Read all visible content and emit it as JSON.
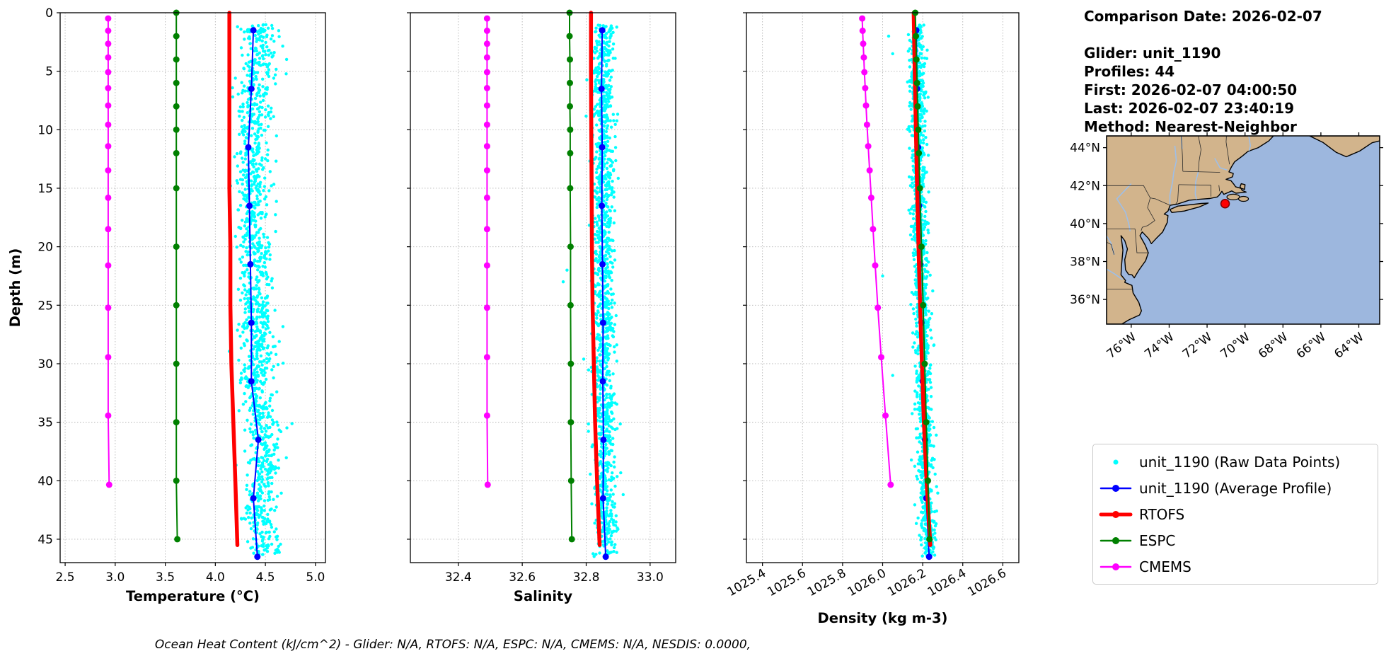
{
  "info": {
    "comparison_date": "Comparison Date: 2026-02-07",
    "lines": [
      "Glider: unit_1190",
      "Profiles: 44",
      "First: 2026-02-07 04:00:50",
      "Last: 2026-02-07 23:40:19",
      "Method: Nearest-Neighbor"
    ]
  },
  "footer": "Ocean Heat Content (kJ/cm^2) - Glider: N/A,  RTOFS: N/A,  ESPC: N/A,  CMEMS: N/A,  NESDIS: 0.0000,",
  "legend": {
    "items": [
      {
        "label": "unit_1190 (Raw Data Points)",
        "color": "#00ffff",
        "style": "dot",
        "marker_radius": 3.5,
        "line_width": 0
      },
      {
        "label": "unit_1190 (Average Profile)",
        "color": "#0000ff",
        "style": "line-dot",
        "marker_radius": 5,
        "line_width": 2.5
      },
      {
        "label": "RTOFS",
        "color": "#ff0000",
        "style": "line-dot",
        "marker_radius": 5,
        "line_width": 5
      },
      {
        "label": "ESPC",
        "color": "#008000",
        "style": "line-dot",
        "marker_radius": 5,
        "line_width": 2.5
      },
      {
        "label": "CMEMS",
        "color": "#ff00ff",
        "style": "line-dot",
        "marker_radius": 5,
        "line_width": 2.5
      }
    ]
  },
  "map": {
    "lon_range": [
      -77.3,
      -62.9
    ],
    "lat_range": [
      34.7,
      44.62
    ],
    "lat_ticks": [
      36,
      38,
      40,
      42,
      44
    ],
    "lat_tick_labels": [
      "36°N",
      "38°N",
      "40°N",
      "42°N",
      "44°N"
    ],
    "lon_ticks": [
      -76,
      -74,
      -72,
      -70,
      -68,
      -66,
      -64
    ],
    "lon_tick_labels": [
      "76°W",
      "74°W",
      "72°W",
      "70°W",
      "68°W",
      "66°W",
      "64°W"
    ],
    "ocean_color": "#9db7de",
    "land_color": "#d2b48c",
    "river_color": "#9ebfe8",
    "marker": {
      "lat": 41.05,
      "lon": -71.05,
      "color": "#ff0000"
    }
  },
  "chart_data": [
    {
      "id": "temperature",
      "type": "line",
      "xlabel": "Temperature (°C)",
      "ylabel": "Depth (m)",
      "xlim": [
        2.45,
        5.1
      ],
      "ylim": [
        0,
        47
      ],
      "xticks": [
        2.5,
        3.0,
        3.5,
        4.0,
        4.5,
        5.0
      ],
      "xtick_labels": [
        "2.5",
        "3.0",
        "3.5",
        "4.0",
        "4.5",
        "5.0"
      ],
      "xtick_rotation": 0,
      "yticks": [
        0,
        5,
        10,
        15,
        20,
        25,
        30,
        35,
        40,
        45
      ],
      "ytick_labels": [
        "0",
        "5",
        "10",
        "15",
        "20",
        "25",
        "30",
        "35",
        "40",
        "45"
      ],
      "show_ytick_labels": true,
      "grid": true,
      "series": [
        {
          "name": "unit_1190 (Raw Data Points)",
          "type": "cloud",
          "color": "#00ffff",
          "count": 1300,
          "seed": 7,
          "spread": 0.085,
          "offset": 0.055,
          "depth_range": [
            1.0,
            46.5
          ],
          "dot_radius": 2.2,
          "center_ref": "unit_1190 (Average Profile)",
          "outliers": []
        },
        {
          "name": "unit_1190 (Average Profile)",
          "type": "line",
          "color": "#0000ff",
          "line_width": 2,
          "marker_radius": 4.5,
          "depths": [
            1.5,
            6.5,
            11.5,
            16.5,
            21.5,
            26.5,
            31.5,
            36.5,
            41.5,
            46.5
          ],
          "values": [
            4.38,
            4.36,
            4.33,
            4.34,
            4.35,
            4.36,
            4.36,
            4.43,
            4.38,
            4.42
          ]
        },
        {
          "name": "RTOFS",
          "type": "line",
          "color": "#ff0000",
          "line_width": 5.5,
          "marker_radius": 0,
          "depths": [
            0,
            5,
            10,
            15,
            20,
            25,
            30,
            35,
            40,
            45.5
          ],
          "values": [
            4.14,
            4.14,
            4.14,
            4.14,
            4.15,
            4.15,
            4.16,
            4.18,
            4.2,
            4.22
          ]
        },
        {
          "name": "ESPC",
          "type": "line",
          "color": "#008000",
          "line_width": 2,
          "marker_radius": 4.5,
          "depths": [
            0,
            2,
            4,
            6,
            8,
            10,
            12,
            15,
            20,
            25,
            30,
            35,
            40,
            45
          ],
          "values": [
            3.61,
            3.61,
            3.61,
            3.61,
            3.61,
            3.61,
            3.61,
            3.61,
            3.61,
            3.61,
            3.61,
            3.61,
            3.61,
            3.62
          ]
        },
        {
          "name": "CMEMS",
          "type": "line",
          "color": "#ff00ff",
          "line_width": 2,
          "marker_radius": 4.5,
          "depths": [
            0.49,
            1.54,
            2.65,
            3.82,
            5.08,
            6.44,
            7.93,
            9.57,
            11.41,
            13.47,
            15.81,
            18.5,
            21.6,
            25.21,
            29.44,
            34.43,
            40.34
          ],
          "values": [
            2.93,
            2.93,
            2.93,
            2.93,
            2.93,
            2.93,
            2.93,
            2.93,
            2.93,
            2.93,
            2.93,
            2.93,
            2.93,
            2.93,
            2.93,
            2.93,
            2.94
          ]
        }
      ]
    },
    {
      "id": "salinity",
      "type": "line",
      "xlabel": "Salinity",
      "ylabel": "",
      "xlim": [
        32.25,
        33.08
      ],
      "ylim": [
        0,
        47
      ],
      "xticks": [
        32.4,
        32.6,
        32.8,
        33.0
      ],
      "xtick_labels": [
        "32.4",
        "32.6",
        "32.8",
        "33.0"
      ],
      "xtick_rotation": 0,
      "yticks": [
        0,
        5,
        10,
        15,
        20,
        25,
        30,
        35,
        40,
        45
      ],
      "ytick_labels": [],
      "show_ytick_labels": false,
      "grid": true,
      "series": [
        {
          "name": "unit_1190 (Raw Data Points)",
          "type": "cloud",
          "color": "#00ffff",
          "count": 1300,
          "seed": 11,
          "spread": 0.017,
          "offset": 0.004,
          "depth_range": [
            1.0,
            46.5
          ],
          "dot_radius": 2.2,
          "center_ref": "unit_1190 (Average Profile)",
          "outliers": [
            [
              32.728,
              23.0
            ],
            [
              32.74,
              22.0
            ]
          ]
        },
        {
          "name": "unit_1190 (Average Profile)",
          "type": "line",
          "color": "#0000ff",
          "line_width": 2,
          "marker_radius": 4.5,
          "depths": [
            1.5,
            6.5,
            11.5,
            16.5,
            21.5,
            26.5,
            31.5,
            36.5,
            41.5,
            46.5
          ],
          "values": [
            32.85,
            32.848,
            32.85,
            32.849,
            32.851,
            32.853,
            32.852,
            32.854,
            32.853,
            32.861
          ]
        },
        {
          "name": "RTOFS",
          "type": "line",
          "color": "#ff0000",
          "line_width": 5.5,
          "marker_radius": 0,
          "depths": [
            0,
            5,
            10,
            15,
            20,
            25,
            30,
            35,
            40,
            45.5
          ],
          "values": [
            32.815,
            32.815,
            32.816,
            32.817,
            32.818,
            32.82,
            32.824,
            32.828,
            32.834,
            32.842
          ]
        },
        {
          "name": "ESPC",
          "type": "line",
          "color": "#008000",
          "line_width": 2,
          "marker_radius": 4.5,
          "depths": [
            0,
            2,
            4,
            6,
            8,
            10,
            12,
            15,
            20,
            25,
            30,
            35,
            40,
            45
          ],
          "values": [
            32.748,
            32.748,
            32.749,
            32.749,
            32.749,
            32.75,
            32.75,
            32.75,
            32.751,
            32.751,
            32.752,
            32.752,
            32.753,
            32.755
          ]
        },
        {
          "name": "CMEMS",
          "type": "line",
          "color": "#ff00ff",
          "line_width": 2,
          "marker_radius": 4.5,
          "depths": [
            0.49,
            1.54,
            2.65,
            3.82,
            5.08,
            6.44,
            7.93,
            9.57,
            11.41,
            13.47,
            15.81,
            18.5,
            21.6,
            25.21,
            29.44,
            34.43,
            40.34
          ],
          "values": [
            32.49,
            32.49,
            32.49,
            32.49,
            32.49,
            32.49,
            32.49,
            32.49,
            32.49,
            32.49,
            32.49,
            32.49,
            32.49,
            32.49,
            32.49,
            32.49,
            32.492
          ]
        }
      ]
    },
    {
      "id": "density",
      "type": "line",
      "xlabel": "Density (kg m-3)",
      "ylabel": "",
      "xlim": [
        1025.32,
        1026.68
      ],
      "ylim": [
        0,
        47
      ],
      "xticks": [
        1025.4,
        1025.6,
        1025.8,
        1026.0,
        1026.2,
        1026.4,
        1026.6
      ],
      "xtick_labels": [
        "1025.4",
        "1025.6",
        "1025.8",
        "1026.0",
        "1026.2",
        "1026.4",
        "1026.6"
      ],
      "xtick_rotation": -30,
      "yticks": [
        0,
        5,
        10,
        15,
        20,
        25,
        30,
        35,
        40,
        45
      ],
      "ytick_labels": [],
      "show_ytick_labels": false,
      "grid": true,
      "series": [
        {
          "name": "unit_1190 (Raw Data Points)",
          "type": "cloud",
          "color": "#00ffff",
          "count": 1300,
          "seed": 13,
          "spread": 0.02,
          "offset": 0.002,
          "depth_range": [
            1.0,
            46.5
          ],
          "dot_radius": 2.2,
          "center_ref": "unit_1190 (Average Profile)",
          "outliers": [
            [
              1026.03,
              2.0
            ],
            [
              1026.05,
              3.5
            ],
            [
              1026.0,
              22.5
            ],
            [
              1026.05,
              31.0
            ],
            [
              1026.02,
              34.5
            ]
          ]
        },
        {
          "name": "unit_1190 (Average Profile)",
          "type": "line",
          "color": "#0000ff",
          "line_width": 2,
          "marker_radius": 4.5,
          "depths": [
            1.5,
            6.5,
            11.5,
            16.5,
            21.5,
            26.5,
            31.5,
            36.5,
            41.5,
            46.5
          ],
          "values": [
            1026.168,
            1026.172,
            1026.177,
            1026.182,
            1026.188,
            1026.194,
            1026.2,
            1026.212,
            1026.218,
            1026.232
          ]
        },
        {
          "name": "RTOFS",
          "type": "line",
          "color": "#ff0000",
          "line_width": 5.5,
          "marker_radius": 0,
          "depths": [
            0,
            5,
            10,
            15,
            20,
            25,
            30,
            35,
            40,
            45.5
          ],
          "values": [
            1026.155,
            1026.16,
            1026.166,
            1026.172,
            1026.179,
            1026.187,
            1026.196,
            1026.206,
            1026.219,
            1026.238
          ]
        },
        {
          "name": "ESPC",
          "type": "line",
          "color": "#008000",
          "line_width": 2,
          "marker_radius": 4.5,
          "depths": [
            0,
            2,
            4,
            6,
            8,
            10,
            12,
            15,
            20,
            25,
            30,
            35,
            40,
            45
          ],
          "values": [
            1026.163,
            1026.166,
            1026.169,
            1026.172,
            1026.175,
            1026.178,
            1026.181,
            1026.186,
            1026.194,
            1026.202,
            1026.21,
            1026.218,
            1026.226,
            1026.234
          ]
        },
        {
          "name": "CMEMS",
          "type": "line",
          "color": "#ff00ff",
          "line_width": 2,
          "marker_radius": 4.5,
          "depths": [
            0.49,
            1.54,
            2.65,
            3.82,
            5.08,
            6.44,
            7.93,
            9.57,
            11.41,
            13.47,
            15.81,
            18.5,
            21.6,
            25.21,
            29.44,
            34.43,
            40.34
          ],
          "values": [
            1025.898,
            1025.9,
            1025.903,
            1025.906,
            1025.909,
            1025.913,
            1025.917,
            1025.922,
            1025.928,
            1025.935,
            1025.943,
            1025.952,
            1025.963,
            1025.976,
            1025.993,
            1026.014,
            1026.04
          ]
        }
      ]
    }
  ]
}
